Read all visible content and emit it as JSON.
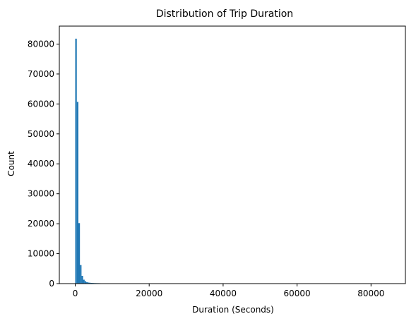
{
  "chart_data": {
    "type": "bar",
    "title": "Distribution of Trip Duration",
    "xlabel": "Duration (Seconds)",
    "ylabel": "Count",
    "xlim": [
      -4300,
      89300
    ],
    "ylim": [
      0,
      86000
    ],
    "xticks": [
      0,
      20000,
      40000,
      60000,
      80000
    ],
    "yticks": [
      0,
      10000,
      20000,
      30000,
      40000,
      50000,
      60000,
      70000,
      80000
    ],
    "bin_width": 425,
    "bins": [
      {
        "x0": 0,
        "x1": 425,
        "count": 81800
      },
      {
        "x0": 425,
        "x1": 850,
        "count": 60700
      },
      {
        "x0": 850,
        "x1": 1275,
        "count": 20200
      },
      {
        "x0": 1275,
        "x1": 1700,
        "count": 6200
      },
      {
        "x0": 1700,
        "x1": 2125,
        "count": 2600
      },
      {
        "x0": 2125,
        "x1": 2550,
        "count": 1300
      },
      {
        "x0": 2550,
        "x1": 2975,
        "count": 800
      },
      {
        "x0": 2975,
        "x1": 3400,
        "count": 500
      },
      {
        "x0": 3400,
        "x1": 3825,
        "count": 350
      },
      {
        "x0": 3825,
        "x1": 4250,
        "count": 280
      },
      {
        "x0": 4250,
        "x1": 4675,
        "count": 230
      },
      {
        "x0": 4675,
        "x1": 5100,
        "count": 200
      },
      {
        "x0": 5100,
        "x1": 5525,
        "count": 180
      },
      {
        "x0": 5525,
        "x1": 5950,
        "count": 160
      },
      {
        "x0": 5950,
        "x1": 6375,
        "count": 150
      },
      {
        "x0": 6375,
        "x1": 6800,
        "count": 140
      },
      {
        "x0": 6800,
        "x1": 7225,
        "count": 60
      },
      {
        "x0": 7225,
        "x1": 7650,
        "count": 30
      },
      {
        "x0": 7650,
        "x1": 8075,
        "count": 20
      },
      {
        "x0": 8075,
        "x1": 8500,
        "count": 15
      }
    ],
    "bar_color": "#1f77b4",
    "grid": false,
    "legend": "none"
  }
}
